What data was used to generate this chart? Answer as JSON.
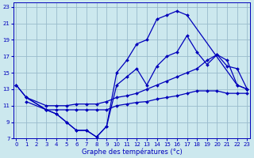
{
  "xlabel": "Graphe des températures (°c)",
  "background_color": "#cce8ee",
  "line_color": "#0000bb",
  "grid_color": "#99bbcc",
  "xlim": [
    -0.3,
    23.3
  ],
  "ylim": [
    7,
    23.5
  ],
  "xticks": [
    0,
    1,
    2,
    3,
    4,
    5,
    6,
    7,
    8,
    9,
    10,
    11,
    12,
    13,
    14,
    15,
    16,
    17,
    18,
    19,
    20,
    21,
    22,
    23
  ],
  "yticks": [
    7,
    9,
    11,
    13,
    15,
    17,
    19,
    21,
    23
  ],
  "curve1_x": [
    0,
    1,
    3,
    4,
    5,
    6,
    7,
    8,
    9,
    10,
    11,
    12,
    13,
    14,
    15,
    16,
    17,
    22,
    23
  ],
  "curve1_y": [
    13.5,
    12.0,
    10.5,
    10.0,
    9.0,
    8.0,
    8.0,
    7.2,
    8.5,
    15.0,
    16.5,
    18.5,
    19.0,
    21.5,
    22.0,
    22.5,
    22.0,
    13.5,
    13.0
  ],
  "curve2_x": [
    0,
    1,
    3,
    4,
    5,
    6,
    7,
    8,
    9,
    10,
    11,
    12,
    13,
    14,
    15,
    16,
    17,
    18,
    19,
    20,
    21,
    22,
    23
  ],
  "curve2_y": [
    13.5,
    12.0,
    10.5,
    10.0,
    9.0,
    8.0,
    8.0,
    7.2,
    8.5,
    13.5,
    14.5,
    15.5,
    13.5,
    15.8,
    17.0,
    17.5,
    19.5,
    17.5,
    16.0,
    17.2,
    15.8,
    15.5,
    13.0
  ],
  "curve3_x": [
    1,
    3,
    4,
    5,
    6,
    7,
    8,
    9,
    10,
    11,
    12,
    13,
    14,
    15,
    16,
    17,
    18,
    19,
    20,
    21,
    22,
    23
  ],
  "curve3_y": [
    12.0,
    11.0,
    11.0,
    11.0,
    11.2,
    11.2,
    11.2,
    11.5,
    12.0,
    12.2,
    12.5,
    13.0,
    13.5,
    14.0,
    14.5,
    15.0,
    15.5,
    16.5,
    17.2,
    16.5,
    13.5,
    13.0
  ],
  "curve4_x": [
    1,
    3,
    4,
    5,
    6,
    7,
    8,
    9,
    10,
    11,
    12,
    13,
    14,
    15,
    16,
    17,
    18,
    19,
    20,
    21,
    22,
    23
  ],
  "curve4_y": [
    11.5,
    10.5,
    10.5,
    10.5,
    10.5,
    10.5,
    10.5,
    10.5,
    11.0,
    11.2,
    11.4,
    11.5,
    11.8,
    12.0,
    12.2,
    12.5,
    12.8,
    12.8,
    12.8,
    12.5,
    12.5,
    12.5
  ]
}
